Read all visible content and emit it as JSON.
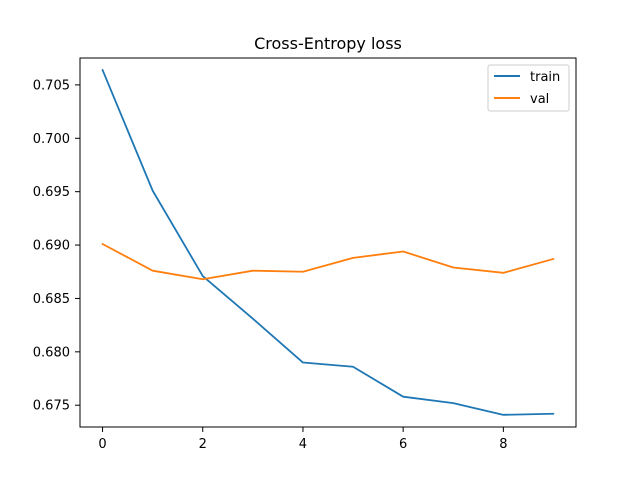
{
  "chart_data": {
    "type": "line",
    "title": "Cross-Entropy loss",
    "xlabel": "",
    "ylabel": "",
    "x": [
      0,
      1,
      2,
      3,
      4,
      5,
      6,
      7,
      8,
      9
    ],
    "series": [
      {
        "name": "train",
        "color": "#1f77b4",
        "values": [
          0.7064,
          0.6951,
          0.6871,
          0.6831,
          0.679,
          0.6786,
          0.6758,
          0.6752,
          0.6741,
          0.6742
        ]
      },
      {
        "name": "val",
        "color": "#ff7f0e",
        "values": [
          0.6901,
          0.6876,
          0.6868,
          0.6876,
          0.6875,
          0.6888,
          0.6894,
          0.6879,
          0.6874,
          0.6887
        ]
      }
    ],
    "xlim": [
      -0.45,
      9.45
    ],
    "ylim": [
      0.67296,
      0.70752
    ],
    "xticks": [
      0,
      2,
      4,
      6,
      8
    ],
    "xtick_labels": [
      "0",
      "2",
      "4",
      "6",
      "8"
    ],
    "yticks": [
      0.675,
      0.68,
      0.685,
      0.69,
      0.695,
      0.7,
      0.705
    ],
    "ytick_labels": [
      "0.675",
      "0.680",
      "0.685",
      "0.690",
      "0.695",
      "0.700",
      "0.705"
    ],
    "grid": false,
    "legend_position": "top-right"
  }
}
